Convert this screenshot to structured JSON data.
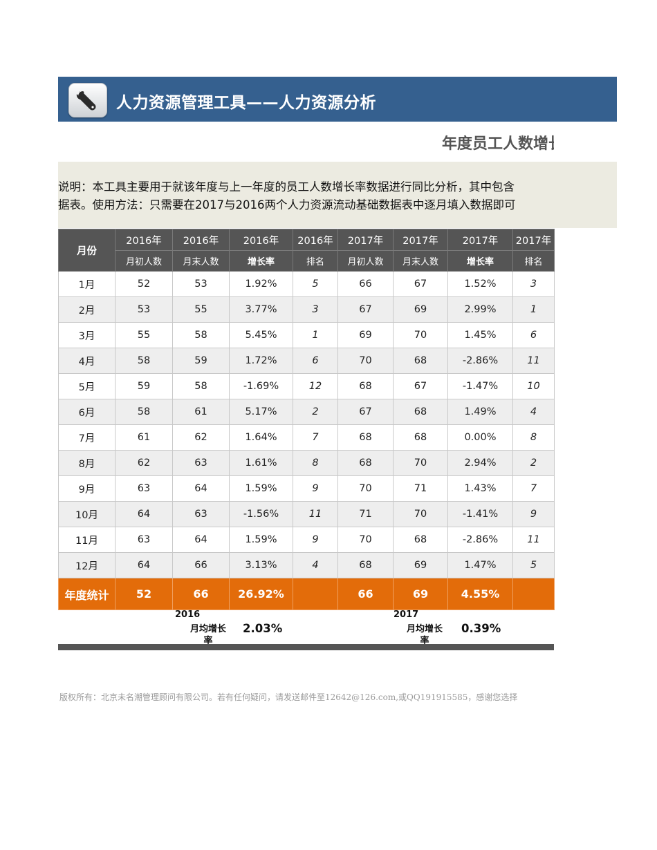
{
  "header": {
    "title": "人力资源管理工具——人力资源分析",
    "icon": "wrench-icon"
  },
  "subtitle": "年度员工人数增长",
  "description": {
    "line1": "说明：本工具主要用于就该年度与上一年度的员工人数增长率数据进行同比分析，其中包含",
    "line2": "据表。使用方法：只需要在2017与2016两个人力资源流动基础数据表中逐月填入数据即可"
  },
  "table": {
    "month_header": "月份",
    "year_headers": [
      "2016年",
      "2016年",
      "2016年",
      "2016年",
      "2017年",
      "2017年",
      "2017年",
      "2017年"
    ],
    "sub_headers": [
      "月初人数",
      "月末人数",
      "增长率",
      "排名",
      "月初人数",
      "月末人数",
      "增长率",
      "排名"
    ],
    "rows": [
      {
        "month": "1月",
        "c": [
          "52",
          "53",
          "1.92%",
          "5",
          "66",
          "67",
          "1.52%",
          "3"
        ]
      },
      {
        "month": "2月",
        "c": [
          "53",
          "55",
          "3.77%",
          "3",
          "67",
          "69",
          "2.99%",
          "1"
        ]
      },
      {
        "month": "3月",
        "c": [
          "55",
          "58",
          "5.45%",
          "1",
          "69",
          "70",
          "1.45%",
          "6"
        ]
      },
      {
        "month": "4月",
        "c": [
          "58",
          "59",
          "1.72%",
          "6",
          "70",
          "68",
          "-2.86%",
          "11"
        ]
      },
      {
        "month": "5月",
        "c": [
          "59",
          "58",
          "-1.69%",
          "12",
          "68",
          "67",
          "-1.47%",
          "10"
        ]
      },
      {
        "month": "6月",
        "c": [
          "58",
          "61",
          "5.17%",
          "2",
          "67",
          "68",
          "1.49%",
          "4"
        ]
      },
      {
        "month": "7月",
        "c": [
          "61",
          "62",
          "1.64%",
          "7",
          "68",
          "68",
          "0.00%",
          "8"
        ]
      },
      {
        "month": "8月",
        "c": [
          "62",
          "63",
          "1.61%",
          "8",
          "68",
          "70",
          "2.94%",
          "2"
        ]
      },
      {
        "month": "9月",
        "c": [
          "63",
          "64",
          "1.59%",
          "9",
          "70",
          "71",
          "1.43%",
          "7"
        ]
      },
      {
        "month": "10月",
        "c": [
          "64",
          "63",
          "-1.56%",
          "11",
          "71",
          "70",
          "-1.41%",
          "9"
        ]
      },
      {
        "month": "11月",
        "c": [
          "63",
          "64",
          "1.59%",
          "9",
          "70",
          "68",
          "-2.86%",
          "11"
        ]
      },
      {
        "month": "12月",
        "c": [
          "64",
          "66",
          "3.13%",
          "4",
          "68",
          "69",
          "1.47%",
          "5"
        ]
      }
    ],
    "total": {
      "label": "年度统计",
      "c2016": [
        "52",
        "66",
        "26.92%"
      ],
      "c2017": [
        "66",
        "69",
        "4.55%"
      ]
    }
  },
  "monthly_average": {
    "label": "月均增长率",
    "y2016": {
      "year": "2016",
      "value": "2.03%"
    },
    "y2017": {
      "year": "2017",
      "value": "0.39%"
    }
  },
  "footer": "版权所有：北京未名潮管理顾问有限公司。若有任何疑问，请发送邮件至12642@126.com,或QQ191915585，感谢您选择"
}
